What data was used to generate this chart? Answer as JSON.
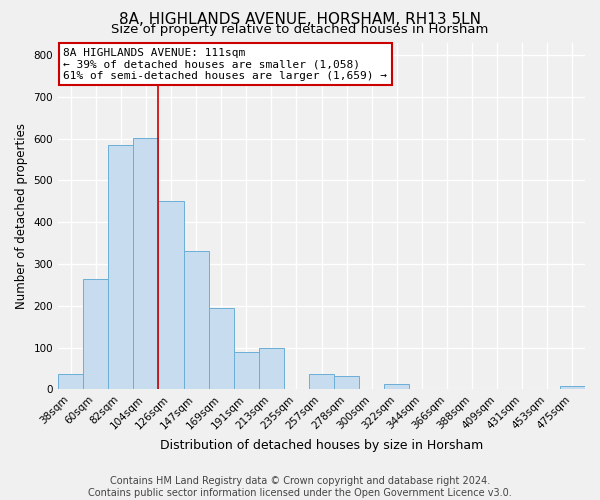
{
  "title": "8A, HIGHLANDS AVENUE, HORSHAM, RH13 5LN",
  "subtitle": "Size of property relative to detached houses in Horsham",
  "xlabel": "Distribution of detached houses by size in Horsham",
  "ylabel": "Number of detached properties",
  "bar_labels": [
    "38sqm",
    "60sqm",
    "82sqm",
    "104sqm",
    "126sqm",
    "147sqm",
    "169sqm",
    "191sqm",
    "213sqm",
    "235sqm",
    "257sqm",
    "278sqm",
    "300sqm",
    "322sqm",
    "344sqm",
    "366sqm",
    "388sqm",
    "409sqm",
    "431sqm",
    "453sqm",
    "475sqm"
  ],
  "bar_heights": [
    38,
    265,
    585,
    602,
    452,
    332,
    196,
    90,
    100,
    0,
    38,
    32,
    0,
    13,
    0,
    0,
    0,
    0,
    0,
    0,
    8
  ],
  "bar_color": "#c8dcef",
  "bar_edge_color": "#6aaed6",
  "red_line_index": 3.5,
  "annotation_line1": "8A HIGHLANDS AVENUE: 111sqm",
  "annotation_line2": "← 39% of detached houses are smaller (1,058)",
  "annotation_line3": "61% of semi-detached houses are larger (1,659) →",
  "annotation_box_facecolor": "#ffffff",
  "annotation_box_edgecolor": "#cc0000",
  "ylim_max": 830,
  "yticks": [
    0,
    100,
    200,
    300,
    400,
    500,
    600,
    700,
    800
  ],
  "footer1": "Contains HM Land Registry data © Crown copyright and database right 2024.",
  "footer2": "Contains public sector information licensed under the Open Government Licence v3.0.",
  "bg_color": "#f0f0f0",
  "plot_bg_color": "#f0f0f0",
  "grid_color": "#ffffff",
  "title_fontsize": 11,
  "subtitle_fontsize": 9.5,
  "ylabel_fontsize": 8.5,
  "xlabel_fontsize": 9,
  "tick_fontsize": 7.5,
  "annotation_fontsize": 8,
  "footer_fontsize": 7
}
